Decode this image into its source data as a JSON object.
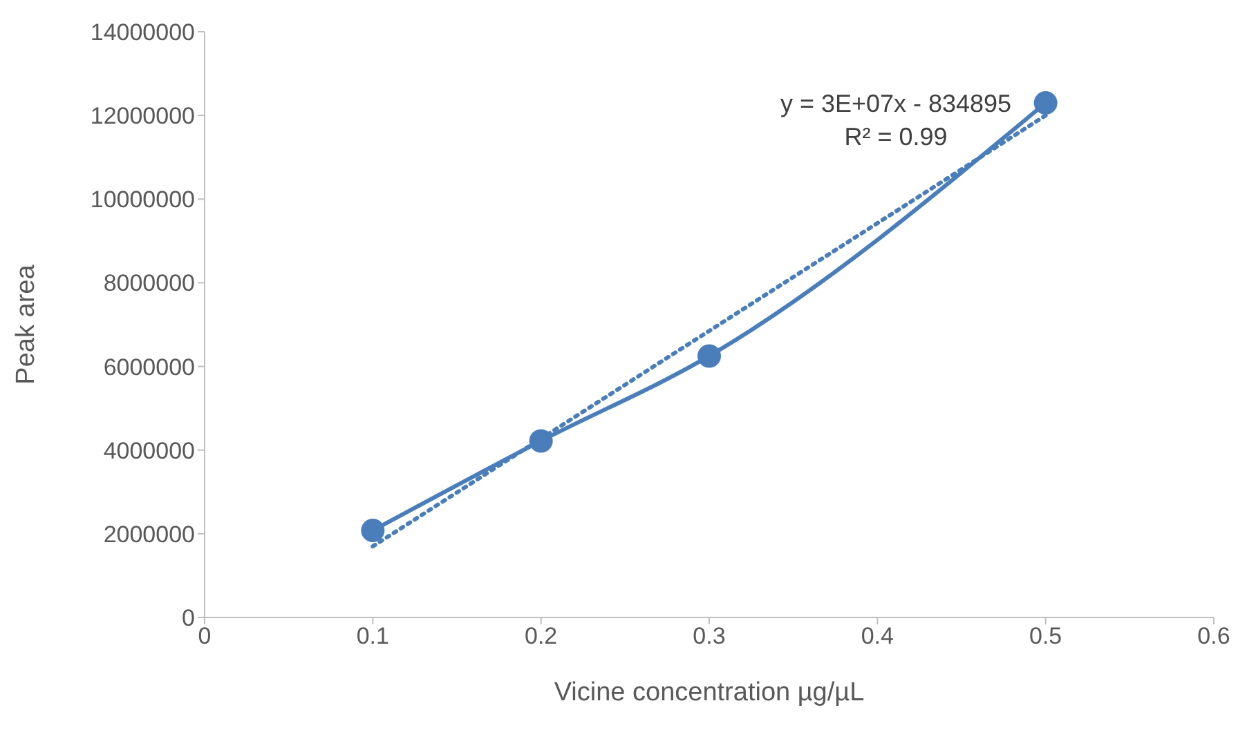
{
  "chart_data": {
    "type": "line",
    "xlabel": "Vicine concentration µg/µL",
    "ylabel": "Peak area",
    "xlim": [
      0,
      0.6
    ],
    "xticks": [
      0,
      0.1,
      0.2,
      0.3,
      0.4,
      0.5,
      0.6
    ],
    "ylim": [
      0,
      14000000
    ],
    "yticks": [
      0,
      2000000,
      4000000,
      6000000,
      8000000,
      10000000,
      12000000,
      14000000
    ],
    "grid": false,
    "legend": false,
    "series": [
      {
        "color": "#4a7ebb",
        "x": [
          0.1,
          0.2,
          0.3,
          0.5
        ],
        "values": [
          2080000,
          4220000,
          6250000,
          12300000
        ],
        "marker": "circle",
        "line_style": "solid"
      },
      {
        "type": "line",
        "color": "#4a7ebb",
        "x": [
          0.1,
          0.5
        ],
        "values": [
          1700000,
          12000000
        ],
        "marker": "none",
        "line_style": "dotted"
      }
    ],
    "annotations": [
      "y = 3E+07x - 834895",
      "R² = 0.99"
    ]
  }
}
